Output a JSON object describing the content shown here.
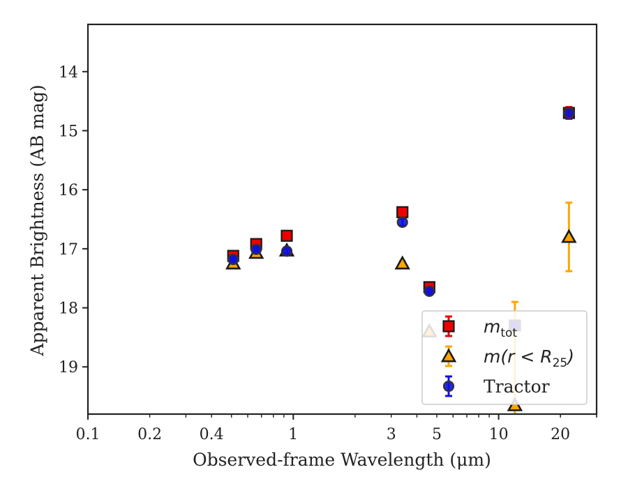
{
  "chart_data": {
    "type": "scatter",
    "title": "",
    "xlabel": "Observed-frame Wavelength (μm)",
    "ylabel": "Apparent Brightness (AB mag)",
    "xscale": "log",
    "xlim": [
      0.1,
      30
    ],
    "ylim": [
      19.8,
      13.2
    ],
    "y_inverted": true,
    "grid": false,
    "legend_position": "lower-right",
    "x_ticks": [
      {
        "value": 0.1,
        "label": "0.1"
      },
      {
        "value": 0.2,
        "label": "0.2"
      },
      {
        "value": 0.4,
        "label": "0.4"
      },
      {
        "value": 1,
        "label": "1"
      },
      {
        "value": 3,
        "label": "3"
      },
      {
        "value": 5,
        "label": "5"
      },
      {
        "value": 10,
        "label": "10"
      },
      {
        "value": 20,
        "label": "20"
      }
    ],
    "y_ticks": [
      {
        "value": 14,
        "label": "14"
      },
      {
        "value": 15,
        "label": "15"
      },
      {
        "value": 16,
        "label": "16"
      },
      {
        "value": 17,
        "label": "17"
      },
      {
        "value": 18,
        "label": "18"
      },
      {
        "value": 19,
        "label": "19"
      }
    ],
    "series": [
      {
        "name": "m_tot",
        "legend_symbol": "m",
        "legend_subscript": "tot",
        "marker": "square",
        "color": "#ee0000",
        "points": [
          {
            "x": 0.51,
            "y": 17.12,
            "err": 0.05
          },
          {
            "x": 0.66,
            "y": 16.92,
            "err": 0.05
          },
          {
            "x": 0.93,
            "y": 16.78,
            "err": 0.05
          },
          {
            "x": 3.4,
            "y": 16.38,
            "err": 0.05
          },
          {
            "x": 4.6,
            "y": 17.65,
            "err": 0.05
          },
          {
            "x": 12,
            "y": 18.3,
            "err": 0.08
          },
          {
            "x": 22,
            "y": 14.7,
            "err": 0.1
          }
        ]
      },
      {
        "name": "m(r < R_25)",
        "legend_symbol": "m(r < R",
        "legend_subscript": "25",
        "legend_suffix": ")",
        "marker": "triangle",
        "color": "#ffa500",
        "points": [
          {
            "x": 0.51,
            "y": 17.25,
            "err": 0.04
          },
          {
            "x": 0.66,
            "y": 17.07,
            "err": 0.04
          },
          {
            "x": 0.93,
            "y": 17.03,
            "err": 0.04
          },
          {
            "x": 3.4,
            "y": 17.25,
            "err": 0.04
          },
          {
            "x": 4.6,
            "y": 18.4,
            "err": 0.04
          },
          {
            "x": 12,
            "y": 19.65,
            "err": 1.75
          },
          {
            "x": 22,
            "y": 16.8,
            "err": 0.58
          }
        ]
      },
      {
        "name": "Tractor",
        "legend_symbol": "Tractor",
        "marker": "circle",
        "color": "#1010dd",
        "points": [
          {
            "x": 0.51,
            "y": 17.18,
            "err": 0.04
          },
          {
            "x": 0.66,
            "y": 17.01,
            "err": 0.04
          },
          {
            "x": 0.93,
            "y": 17.04,
            "err": 0.04
          },
          {
            "x": 3.4,
            "y": 16.55,
            "err": 0.06
          },
          {
            "x": 4.6,
            "y": 17.72,
            "err": 0.06
          },
          {
            "x": 12,
            "y": 18.3,
            "err": 0.08
          },
          {
            "x": 22,
            "y": 14.7,
            "err": 0.08
          }
        ]
      }
    ]
  }
}
